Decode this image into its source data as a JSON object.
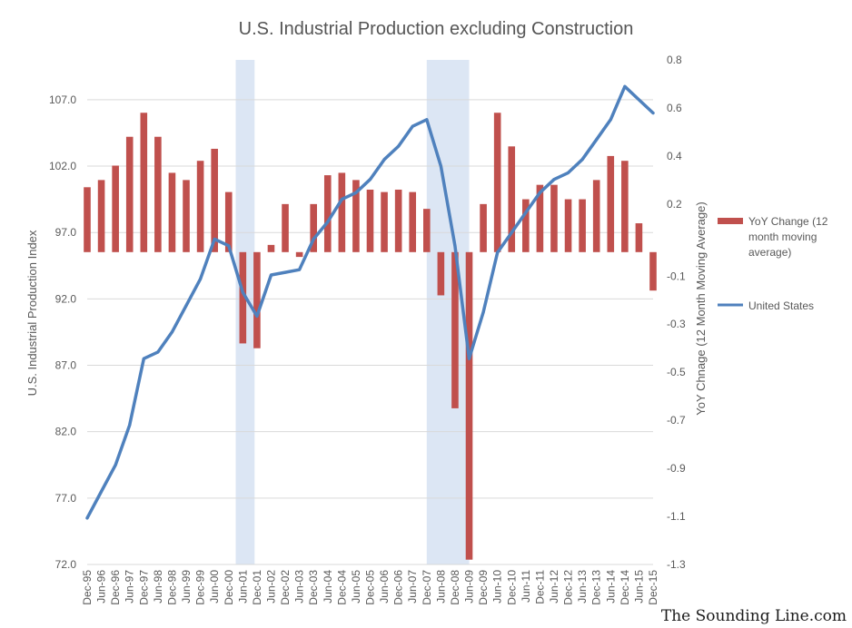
{
  "chart_data": {
    "type": "line",
    "title": "U.S. Industrial Production excluding Construction",
    "y_left_label": "U.S. Industrial Production Index",
    "y_right_label": "YoY Chnage (12 Month Moving Average)",
    "y_left_ticks": [
      "72.0",
      "77.0",
      "82.0",
      "87.0",
      "92.0",
      "97.0",
      "102.0",
      "107.0"
    ],
    "y_left_range": [
      72,
      110
    ],
    "y_right_ticks": [
      "-1.3",
      "-1.1",
      "-0.9",
      "-0.7",
      "-0.5",
      "-0.3",
      "-0.1",
      "0.2",
      "0.4",
      "0.6",
      "0.8"
    ],
    "y_right_range": [
      -1.3,
      0.8
    ],
    "x_tick_labels": [
      "Dec-95",
      "Jun-96",
      "Dec-96",
      "Jun-97",
      "Dec-97",
      "Jun-98",
      "Dec-98",
      "Jun-99",
      "Dec-99",
      "Jun-00",
      "Dec-00",
      "Jun-01",
      "Dec-01",
      "Jun-02",
      "Dec-02",
      "Jun-03",
      "Dec-03",
      "Jun-04",
      "Dec-04",
      "Jun-05",
      "Dec-05",
      "Jun-06",
      "Dec-06",
      "Jun-07",
      "Dec-07",
      "Jun-08",
      "Dec-08",
      "Jun-09",
      "Dec-09",
      "Jun-10",
      "Dec-10",
      "Jun-11",
      "Dec-11",
      "Jun-12",
      "Dec-12",
      "Jun-13",
      "Dec-13",
      "Jun-14",
      "Dec-14",
      "Jun-15",
      "Dec-15"
    ],
    "recessions": [
      [
        "Mar-01",
        "Nov-01"
      ],
      [
        "Dec-07",
        "Jun-09"
      ]
    ],
    "grid": "horizontal",
    "legend_position": "right",
    "series": [
      {
        "name": "YoY Change (12 month moving average)",
        "type": "bar",
        "axis": "right",
        "color": "#c0504d",
        "points": [
          [
            "Dec-95",
            0.27
          ],
          [
            "Jun-96",
            0.3
          ],
          [
            "Dec-96",
            0.36
          ],
          [
            "Jun-97",
            0.48
          ],
          [
            "Dec-97",
            0.58
          ],
          [
            "Jun-98",
            0.48
          ],
          [
            "Dec-98",
            0.33
          ],
          [
            "Jun-99",
            0.3
          ],
          [
            "Dec-99",
            0.38
          ],
          [
            "Jun-00",
            0.43
          ],
          [
            "Dec-00",
            0.25
          ],
          [
            "Jun-01",
            -0.38
          ],
          [
            "Dec-01",
            -0.4
          ],
          [
            "Jun-02",
            0.03
          ],
          [
            "Dec-02",
            0.2
          ],
          [
            "Jun-03",
            -0.02
          ],
          [
            "Dec-03",
            0.2
          ],
          [
            "Jun-04",
            0.32
          ],
          [
            "Dec-04",
            0.33
          ],
          [
            "Jun-05",
            0.3
          ],
          [
            "Dec-05",
            0.26
          ],
          [
            "Jun-06",
            0.25
          ],
          [
            "Dec-06",
            0.26
          ],
          [
            "Jun-07",
            0.25
          ],
          [
            "Dec-07",
            0.18
          ],
          [
            "Jun-08",
            -0.18
          ],
          [
            "Dec-08",
            -0.65
          ],
          [
            "Jun-09",
            -1.28
          ],
          [
            "Dec-09",
            0.2
          ],
          [
            "Jun-10",
            0.58
          ],
          [
            "Dec-10",
            0.44
          ],
          [
            "Jun-11",
            0.22
          ],
          [
            "Dec-11",
            0.28
          ],
          [
            "Jun-12",
            0.28
          ],
          [
            "Dec-12",
            0.22
          ],
          [
            "Jun-13",
            0.22
          ],
          [
            "Dec-13",
            0.3
          ],
          [
            "Jun-14",
            0.4
          ],
          [
            "Dec-14",
            0.38
          ],
          [
            "Jun-15",
            0.12
          ],
          [
            "Dec-15",
            -0.16
          ]
        ]
      },
      {
        "name": "United States",
        "type": "line",
        "axis": "left",
        "color": "#4f81bd",
        "points": [
          [
            "Dec-95",
            75.5
          ],
          [
            "Jun-96",
            77.5
          ],
          [
            "Dec-96",
            79.5
          ],
          [
            "Jun-97",
            82.5
          ],
          [
            "Dec-97",
            87.5
          ],
          [
            "Jun-98",
            88.0
          ],
          [
            "Dec-98",
            89.5
          ],
          [
            "Jun-99",
            91.5
          ],
          [
            "Dec-99",
            93.5
          ],
          [
            "Jun-00",
            96.5
          ],
          [
            "Dec-00",
            96.0
          ],
          [
            "Jun-01",
            92.5
          ],
          [
            "Dec-01",
            90.7
          ],
          [
            "Jun-02",
            93.8
          ],
          [
            "Dec-02",
            94.0
          ],
          [
            "Jun-03",
            94.2
          ],
          [
            "Dec-03",
            96.5
          ],
          [
            "Jun-04",
            97.8
          ],
          [
            "Dec-04",
            99.5
          ],
          [
            "Jun-05",
            100.0
          ],
          [
            "Dec-05",
            101.0
          ],
          [
            "Jun-06",
            102.5
          ],
          [
            "Dec-06",
            103.5
          ],
          [
            "Jun-07",
            105.0
          ],
          [
            "Dec-07",
            105.5
          ],
          [
            "Jun-08",
            102.0
          ],
          [
            "Dec-08",
            96.0
          ],
          [
            "Jun-09",
            87.5
          ],
          [
            "Dec-09",
            91.0
          ],
          [
            "Jun-10",
            95.5
          ],
          [
            "Dec-10",
            97.0
          ],
          [
            "Jun-11",
            98.5
          ],
          [
            "Dec-11",
            100.0
          ],
          [
            "Jun-12",
            101.0
          ],
          [
            "Dec-12",
            101.5
          ],
          [
            "Jun-13",
            102.5
          ],
          [
            "Dec-13",
            104.0
          ],
          [
            "Jun-14",
            105.5
          ],
          [
            "Dec-14",
            108.0
          ],
          [
            "Jun-15",
            107.0
          ],
          [
            "Dec-15",
            106.0
          ]
        ]
      }
    ]
  },
  "watermark": "The Sounding Line.com"
}
